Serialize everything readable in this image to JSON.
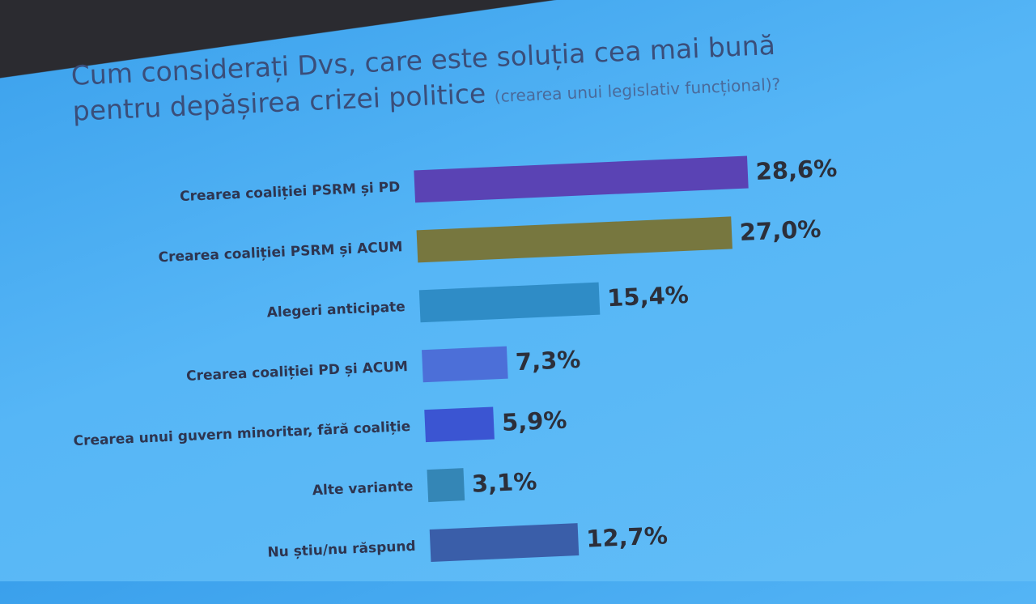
{
  "chart_data": {
    "type": "bar",
    "orientation": "horizontal",
    "title": "Cum considerați Dvs, care este soluția cea mai bună pentru depășirea crizei politice",
    "subtitle": "(crearea unui legislativ funcțional)?",
    "categories": [
      "Crearea coaliției PSRM și PD",
      "Crearea coaliției PSRM și ACUM",
      "Alegeri anticipate",
      "Crearea coaliției PD și ACUM",
      "Crearea unui guvern minoritar, fără coaliție",
      "Alte variante",
      "Nu știu/nu răspund"
    ],
    "values": [
      28.6,
      27.0,
      15.4,
      7.3,
      5.9,
      3.1,
      12.7
    ],
    "value_labels": [
      "28,6%",
      "27,0%",
      "15,4%",
      "7,3%",
      "5,9%",
      "3,1%",
      "12,7%"
    ],
    "colors": [
      "#5a43b4",
      "#77773f",
      "#2f8cc6",
      "#4c6fd8",
      "#3b55d2",
      "#3486b6",
      "#3a5ea9"
    ]
  }
}
